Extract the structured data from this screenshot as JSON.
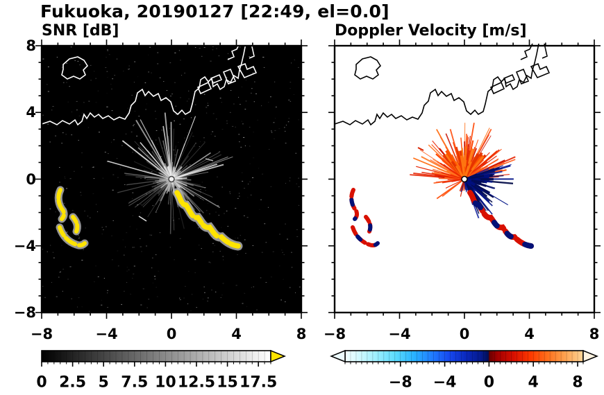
{
  "title": "Fukuoka, 20190127 [22:49, el=0.0]",
  "panels": {
    "snr": {
      "subtitle": "SNR [dB]",
      "background": "#000000",
      "axis": {
        "xlim": [
          -8,
          8
        ],
        "ylim": [
          -8,
          8
        ],
        "x_tick_values": [
          -8,
          -4,
          0,
          4,
          8
        ],
        "y_tick_values": [
          8,
          4,
          0,
          -4,
          -8
        ],
        "x_tick_labels": [
          "−8",
          "−4",
          "0",
          "4",
          "8"
        ],
        "y_tick_labels": [
          "8",
          "4",
          "0",
          "−4",
          "−8"
        ],
        "major_tick_step": 4,
        "minor_tick_step": 1
      },
      "colorbar": {
        "min": 0,
        "max": 18.5,
        "minor_step": 0.5,
        "tick_values": [
          0,
          2.5,
          5,
          7.5,
          10,
          12.5,
          15,
          17.5
        ],
        "tick_labels": [
          "0",
          "2.5",
          "5",
          "7.5",
          "10",
          "12.5",
          "15",
          "17.5"
        ],
        "stops": [
          [
            0,
            "#000000"
          ],
          [
            1,
            "#ffffff"
          ]
        ],
        "over_arrow": "#ffe400"
      }
    },
    "vel": {
      "subtitle": "Doppler Velocity [m/s]",
      "background": "#ffffff",
      "axis": {
        "xlim": [
          -8,
          8
        ],
        "ylim": [
          -8,
          8
        ],
        "x_tick_values": [
          -8,
          -4,
          0,
          4,
          8
        ],
        "y_tick_values": [
          8,
          4,
          0,
          -4,
          -8
        ],
        "x_tick_labels": [
          "−8",
          "−4",
          "0",
          "4",
          "8"
        ],
        "y_tick_labels": [],
        "major_tick_step": 4,
        "minor_tick_step": 1
      },
      "colorbar": {
        "min": -13,
        "max": 8.5,
        "minor_step": 0.5,
        "tick_values": [
          -8,
          -4,
          0,
          4,
          8
        ],
        "tick_labels": [
          "−8",
          "−4",
          "0",
          "4",
          "8"
        ],
        "stops": [
          [
            0,
            "#f4ffff"
          ],
          [
            0.05,
            "#d8fbff"
          ],
          [
            0.13,
            "#9defff"
          ],
          [
            0.21,
            "#5cdcff"
          ],
          [
            0.29,
            "#28b2ff"
          ],
          [
            0.37,
            "#2079ff"
          ],
          [
            0.44,
            "#1647ee"
          ],
          [
            0.51,
            "#0a28bb"
          ],
          [
            0.57,
            "#051a8e"
          ],
          [
            0.602,
            "#020e55"
          ],
          [
            0.606,
            "#6b0000"
          ],
          [
            0.64,
            "#a30000"
          ],
          [
            0.71,
            "#d81000"
          ],
          [
            0.78,
            "#ff3a00"
          ],
          [
            0.85,
            "#ff6f1b"
          ],
          [
            0.92,
            "#ffa04d"
          ],
          [
            1,
            "#ffd596"
          ]
        ],
        "under_arrow": "#eefcff",
        "over_arrow": "#fff3e0"
      }
    }
  },
  "chart_data": [
    {
      "type": "heatmap",
      "title": "SNR [dB]",
      "xlabel": "",
      "ylabel": "",
      "xlim": [
        -8,
        8
      ],
      "ylim": [
        -8,
        8
      ],
      "xticks": [
        -8,
        -4,
        0,
        4,
        8
      ],
      "yticks": [
        -8,
        -4,
        0,
        4,
        8
      ],
      "minor_tick_step": 1,
      "grid": false,
      "colorbar": {
        "orientation": "horizontal",
        "range": [
          0,
          18.5
        ],
        "ticks": [
          0,
          2.5,
          5,
          7.5,
          10,
          12.5,
          15,
          17.5
        ],
        "colormap": "grayscale black to white",
        "over_range_color": "yellow"
      },
      "features": [
        {
          "name": "radar-site",
          "x": 0,
          "y": 0
        },
        {
          "name": "clutter-spokes",
          "desc": "thin gray radial spokes out to about 3.5 km in all directions, brightest toward upper left and upper right of the radar"
        },
        {
          "name": "strong-echo-band-southeast",
          "desc": "broken yellow band (>17.5 dB) from about (0.4,-0.9) to (4.1,-4.3) km with pale gray fringes"
        },
        {
          "name": "strong-echo-cluster-west",
          "desc": "yellow echo arcs between about (-7.2,-0.8) and (-5.4,-4.4) km"
        },
        {
          "name": "coastline",
          "desc": "white Hakata Bay coastline with island and harbor structures across the upper third"
        },
        {
          "name": "noise",
          "desc": "sparse faint gray speckle over the black background"
        }
      ]
    },
    {
      "type": "heatmap",
      "title": "Doppler Velocity [m/s]",
      "xlabel": "",
      "ylabel": "",
      "xlim": [
        -8,
        8
      ],
      "ylim": [
        -8,
        8
      ],
      "xticks": [
        -8,
        -4,
        0,
        4,
        8
      ],
      "yticks": [
        -8,
        -4,
        0,
        4,
        8
      ],
      "minor_tick_step": 1,
      "grid": false,
      "colorbar": {
        "orientation": "horizontal",
        "range_estimated": [
          -13,
          8.5
        ],
        "ticks": [
          -8,
          -4,
          0,
          4,
          8
        ],
        "colormap": "diverging cyan-blue-navy to darkred-red-orange",
        "under_range_arrow": true,
        "over_range_arrow": true
      },
      "features": [
        {
          "name": "radar-site",
          "x": 0,
          "y": 0
        },
        {
          "name": "positive-velocity-fan",
          "desc": "dense orange/red spokes (about +2 to +9 m/s) fanning over the half-plane above the radar"
        },
        {
          "name": "negative-velocity-fan",
          "desc": "dark navy spokes (about -5 to -11 m/s) east and southeast of the radar"
        },
        {
          "name": "echo-band-southeast",
          "desc": "same band as SNR panel, alternating red and dark navy cells"
        },
        {
          "name": "echo-cluster-west",
          "desc": "red arcs with dark navy patches on the west side"
        },
        {
          "name": "coastline",
          "desc": "black coastline, same geometry as SNR panel, on white background"
        }
      ]
    }
  ]
}
